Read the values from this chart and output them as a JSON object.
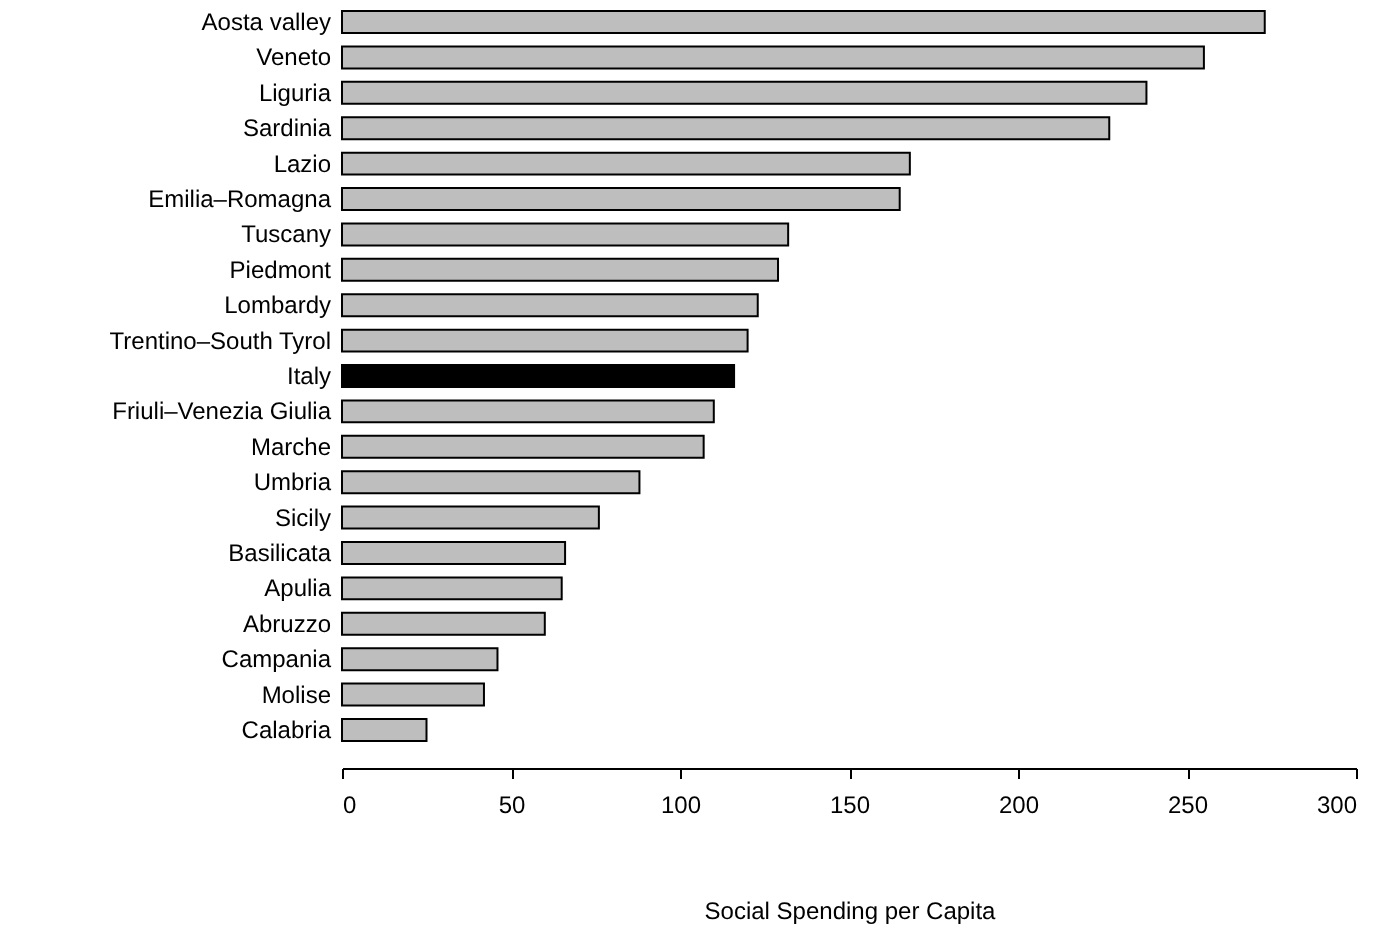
{
  "chart_data": {
    "type": "bar",
    "orientation": "horizontal",
    "xlabel": "Social Spending per Capita",
    "categories": [
      "Aosta valley",
      "Veneto",
      "Liguria",
      "Sardinia",
      "Lazio",
      "Emilia–Romagna",
      "Tuscany",
      "Piedmont",
      "Lombardy",
      "Trentino–South Tyrol",
      "Italy",
      "Friuli–Venezia Giulia",
      "Marche",
      "Umbria",
      "Sicily",
      "Basilicata",
      "Apulia",
      "Abruzzo",
      "Campania",
      "Molise",
      "Calabria"
    ],
    "values": [
      273,
      255,
      238,
      227,
      168,
      165,
      132,
      129,
      123,
      120,
      116,
      110,
      107,
      88,
      76,
      66,
      65,
      60,
      46,
      42,
      25
    ],
    "colors": [
      "#bebebe",
      "#bebebe",
      "#bebebe",
      "#bebebe",
      "#bebebe",
      "#bebebe",
      "#bebebe",
      "#bebebe",
      "#bebebe",
      "#bebebe",
      "#000000",
      "#bebebe",
      "#bebebe",
      "#bebebe",
      "#bebebe",
      "#bebebe",
      "#bebebe",
      "#bebebe",
      "#bebebe",
      "#bebebe",
      "#bebebe"
    ],
    "xlim": [
      0,
      300
    ],
    "xticks": [
      0,
      50,
      100,
      150,
      200,
      250,
      300
    ],
    "grid": false
  }
}
